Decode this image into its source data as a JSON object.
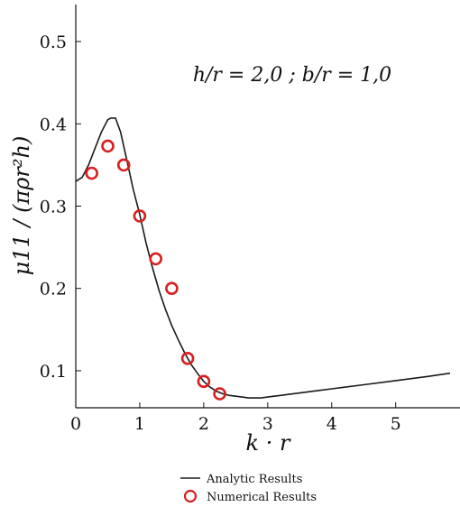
{
  "chart_data": {
    "type": "line",
    "title": "",
    "annotation": "h/r = 2,0 ; b/r = 1,0",
    "xlabel": "k · r",
    "ylabel": "μ11 / (πρr²h)",
    "xlim": [
      0,
      5.85
    ],
    "ylim": [
      0.055,
      0.545
    ],
    "xticks": [
      0,
      1,
      2,
      3,
      4,
      5
    ],
    "xtick_labels": [
      "0",
      "1",
      "2",
      "3",
      "4",
      "5"
    ],
    "yticks": [
      0.1,
      0.2,
      0.3,
      0.4,
      0.5
    ],
    "ytick_labels": [
      "0.1",
      "0.2",
      "0.3",
      "0.4",
      "0.5"
    ],
    "legend": {
      "position": "bottom-center",
      "entries": [
        "Analytic Results",
        "Numerical Results"
      ]
    },
    "series": [
      {
        "name": "Analytic Results",
        "kind": "line",
        "color": "#1a1a1a",
        "x": [
          0,
          0.1,
          0.2,
          0.3,
          0.4,
          0.5,
          0.55,
          0.62,
          0.7,
          0.8,
          0.9,
          1.0,
          1.1,
          1.2,
          1.3,
          1.4,
          1.5,
          1.6,
          1.7,
          1.8,
          1.9,
          2.0,
          2.1,
          2.2,
          2.3,
          2.4,
          2.5,
          2.6,
          2.7,
          2.8,
          2.9,
          3.0,
          3.2,
          3.5,
          3.8,
          4.0,
          4.2,
          4.5,
          5.0,
          5.5,
          5.85
        ],
        "y": [
          0.33,
          0.335,
          0.35,
          0.37,
          0.39,
          0.405,
          0.407,
          0.407,
          0.39,
          0.355,
          0.32,
          0.29,
          0.255,
          0.225,
          0.198,
          0.175,
          0.155,
          0.138,
          0.122,
          0.108,
          0.097,
          0.087,
          0.08,
          0.075,
          0.072,
          0.07,
          0.069,
          0.068,
          0.067,
          0.067,
          0.067,
          0.068,
          0.07,
          0.073,
          0.076,
          0.078,
          0.08,
          0.083,
          0.088,
          0.093,
          0.097
        ]
      },
      {
        "name": "Numerical Results",
        "kind": "scatter",
        "color": "#d62020",
        "x": [
          0.25,
          0.5,
          0.75,
          1.0,
          1.25,
          1.5,
          1.75,
          2.0,
          2.25
        ],
        "y": [
          0.34,
          0.373,
          0.35,
          0.288,
          0.236,
          0.2,
          0.115,
          0.087,
          0.072
        ]
      }
    ]
  }
}
